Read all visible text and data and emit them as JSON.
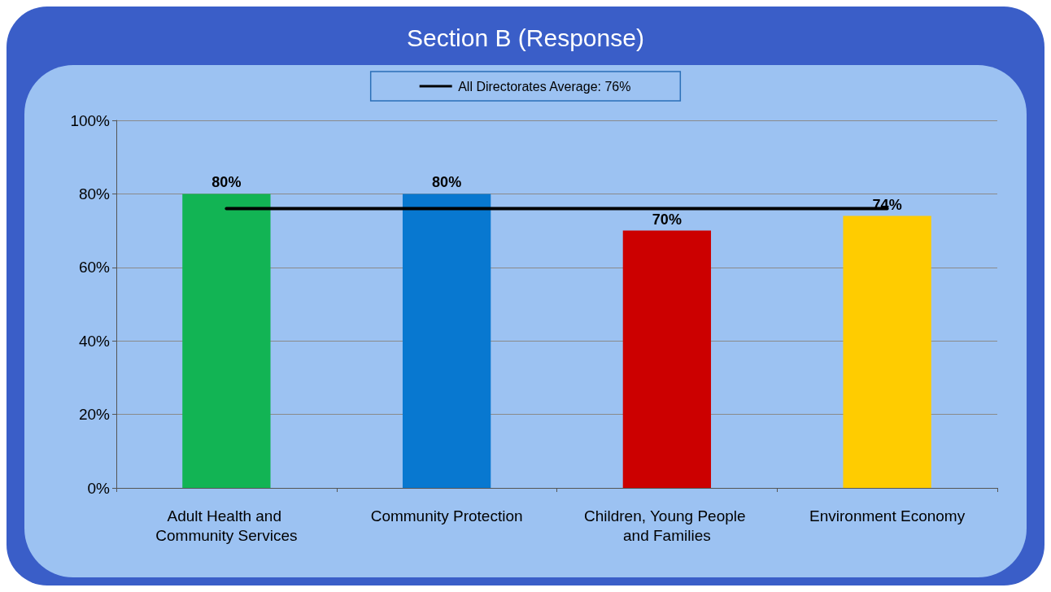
{
  "chart_data": {
    "type": "bar",
    "title": "Section B (Response)",
    "categories": [
      "Adult Health and Community Services",
      "Community Protection",
      "Children, Young People and Families",
      "Environment Economy"
    ],
    "series": [
      {
        "colors": [
          "#12b454",
          "#0878d0",
          "#cc0000",
          "#ffcc00"
        ],
        "values": [
          80,
          80,
          70,
          74
        ],
        "value_labels": [
          "80%",
          "80%",
          "70%",
          "74%"
        ]
      },
      {
        "type": "line",
        "name": "All Directorates Average: 76%",
        "color": "#000000",
        "values": [
          76,
          76,
          76,
          76
        ],
        "marker": "none",
        "line_style": "solid"
      }
    ],
    "ylim": [
      0,
      100
    ],
    "yticks": [
      {
        "value": 0,
        "label": "0%"
      },
      {
        "value": 20,
        "label": "20%"
      },
      {
        "value": 40,
        "label": "40%"
      },
      {
        "value": 60,
        "label": "60%"
      },
      {
        "value": 80,
        "label": "80%"
      },
      {
        "value": 100,
        "label": "100%"
      }
    ],
    "grid": "y",
    "legend": "top"
  }
}
